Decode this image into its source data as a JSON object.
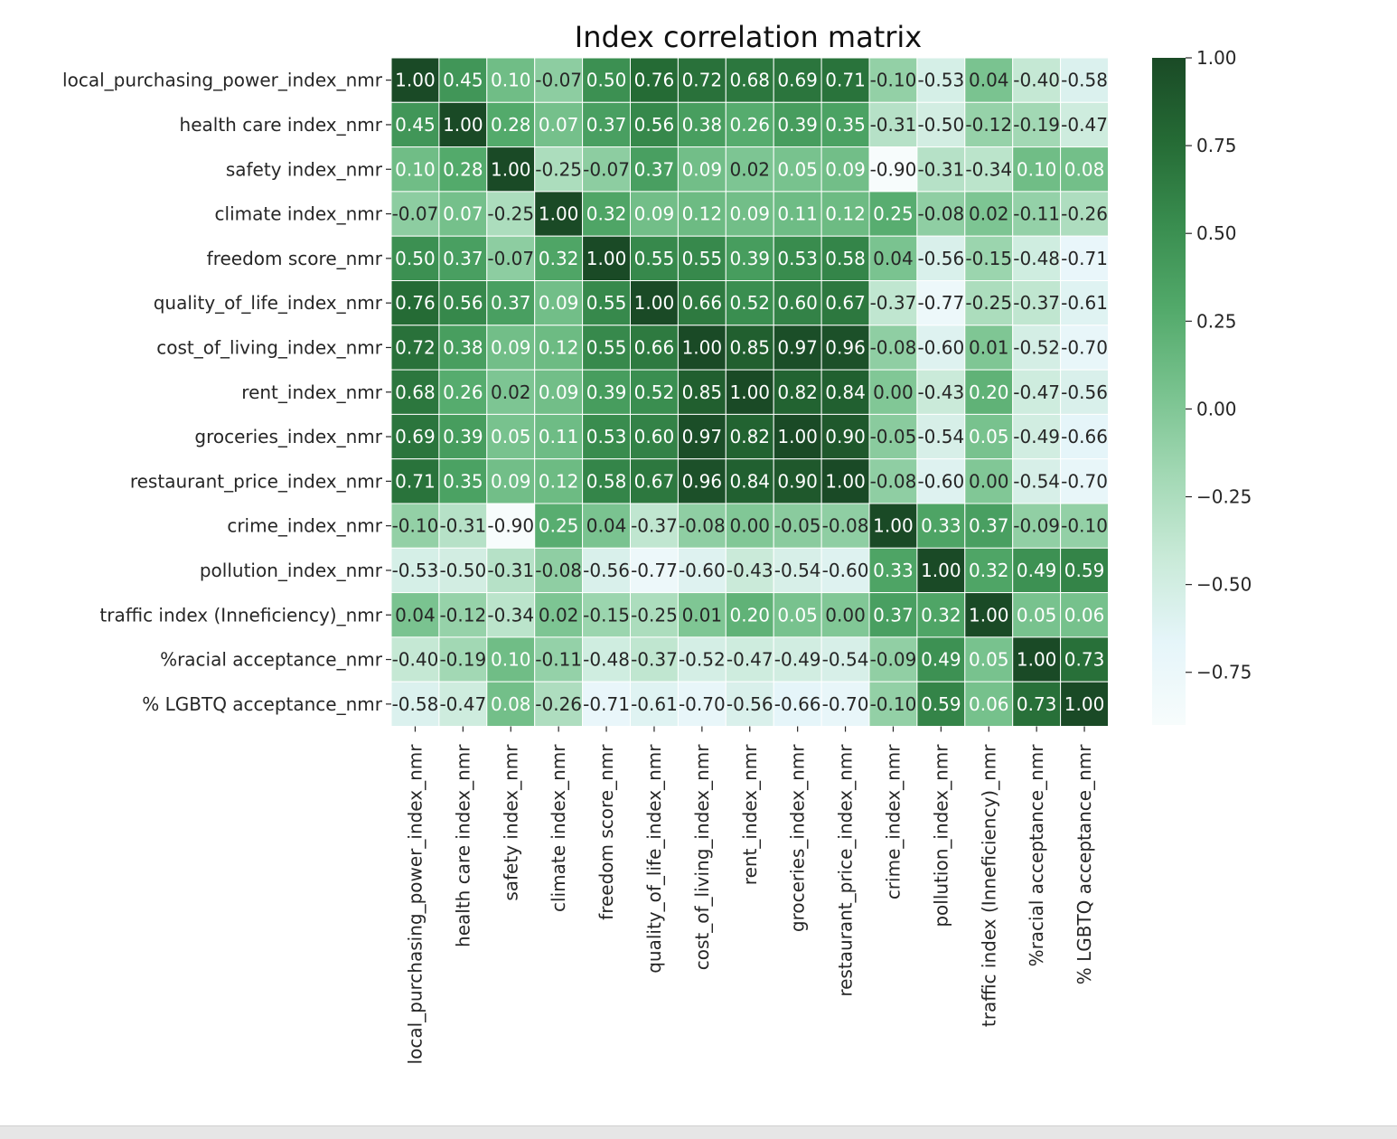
{
  "chart_data": {
    "type": "heatmap",
    "title": "Index correlation matrix",
    "xlabel": "",
    "ylabel": "",
    "labels": [
      "local_purchasing_power_index_nmr",
      "health care index_nmr",
      "safety index_nmr",
      "climate index_nmr",
      "freedom score_nmr",
      "quality_of_life_index_nmr",
      "cost_of_living_index_nmr",
      "rent_index_nmr",
      "groceries_index_nmr",
      "restaurant_price_index_nmr",
      "crime_index_nmr",
      "pollution_index_nmr",
      "traffic index (Inneficiency)_nmr",
      "%racial acceptance_nmr",
      "% LGBTQ acceptance_nmr"
    ],
    "values": [
      [
        1.0,
        0.45,
        0.1,
        -0.07,
        0.5,
        0.76,
        0.72,
        0.68,
        0.69,
        0.71,
        -0.1,
        -0.53,
        0.04,
        -0.4,
        -0.58
      ],
      [
        0.45,
        1.0,
        0.28,
        0.07,
        0.37,
        0.56,
        0.38,
        0.26,
        0.39,
        0.35,
        -0.31,
        -0.5,
        -0.12,
        -0.19,
        -0.47
      ],
      [
        0.1,
        0.28,
        1.0,
        -0.25,
        -0.07,
        0.37,
        0.09,
        0.02,
        0.05,
        0.09,
        -0.9,
        -0.31,
        -0.34,
        0.1,
        0.08
      ],
      [
        -0.07,
        0.07,
        -0.25,
        1.0,
        0.32,
        0.09,
        0.12,
        0.09,
        0.11,
        0.12,
        0.25,
        -0.08,
        0.02,
        -0.11,
        -0.26
      ],
      [
        0.5,
        0.37,
        -0.07,
        0.32,
        1.0,
        0.55,
        0.55,
        0.39,
        0.53,
        0.58,
        0.04,
        -0.56,
        -0.15,
        -0.48,
        -0.71
      ],
      [
        0.76,
        0.56,
        0.37,
        0.09,
        0.55,
        1.0,
        0.66,
        0.52,
        0.6,
        0.67,
        -0.37,
        -0.77,
        -0.25,
        -0.37,
        -0.61
      ],
      [
        0.72,
        0.38,
        0.09,
        0.12,
        0.55,
        0.66,
        1.0,
        0.85,
        0.97,
        0.96,
        -0.08,
        -0.6,
        0.01,
        -0.52,
        -0.7
      ],
      [
        0.68,
        0.26,
        0.02,
        0.09,
        0.39,
        0.52,
        0.85,
        1.0,
        0.82,
        0.84,
        0.0,
        -0.43,
        0.2,
        -0.47,
        -0.56
      ],
      [
        0.69,
        0.39,
        0.05,
        0.11,
        0.53,
        0.6,
        0.97,
        0.82,
        1.0,
        0.9,
        -0.05,
        -0.54,
        0.05,
        -0.49,
        -0.66
      ],
      [
        0.71,
        0.35,
        0.09,
        0.12,
        0.58,
        0.67,
        0.96,
        0.84,
        0.9,
        1.0,
        -0.08,
        -0.6,
        0.0,
        -0.54,
        -0.7
      ],
      [
        -0.1,
        -0.31,
        -0.9,
        0.25,
        0.04,
        -0.37,
        -0.08,
        0.0,
        -0.05,
        -0.08,
        1.0,
        0.33,
        0.37,
        -0.09,
        -0.1
      ],
      [
        -0.53,
        -0.5,
        -0.31,
        -0.08,
        -0.56,
        -0.77,
        -0.6,
        -0.43,
        -0.54,
        -0.6,
        0.33,
        1.0,
        0.32,
        0.49,
        0.59
      ],
      [
        0.04,
        -0.12,
        -0.34,
        0.02,
        -0.15,
        -0.25,
        0.01,
        0.2,
        0.05,
        0.0,
        0.37,
        0.32,
        1.0,
        0.05,
        0.06
      ],
      [
        -0.4,
        -0.19,
        0.1,
        -0.11,
        -0.48,
        -0.37,
        -0.52,
        -0.47,
        -0.49,
        -0.54,
        -0.09,
        0.49,
        0.05,
        1.0,
        0.73
      ],
      [
        -0.58,
        -0.47,
        0.08,
        -0.26,
        -0.71,
        -0.61,
        -0.7,
        -0.56,
        -0.66,
        -0.7,
        -0.1,
        0.59,
        0.06,
        0.73,
        1.0
      ]
    ],
    "colorbar": {
      "range": [
        -0.9,
        1.0
      ],
      "ticks": [
        "1.00",
        "0.75",
        "0.50",
        "0.25",
        "0.00",
        "−0.25",
        "−0.50",
        "−0.75"
      ],
      "tick_values": [
        1.0,
        0.75,
        0.5,
        0.25,
        0.0,
        -0.25,
        -0.5,
        -0.75
      ],
      "colormap": [
        "#f7fcfc",
        "#e5f5f9",
        "#c9ead8",
        "#a2d8b4",
        "#78c28e",
        "#52a96a",
        "#398d4f",
        "#256b35",
        "#1a4a26"
      ]
    },
    "annotations": "values shown in each cell, 2 decimals",
    "grid": false,
    "legend": "colorbar right"
  }
}
